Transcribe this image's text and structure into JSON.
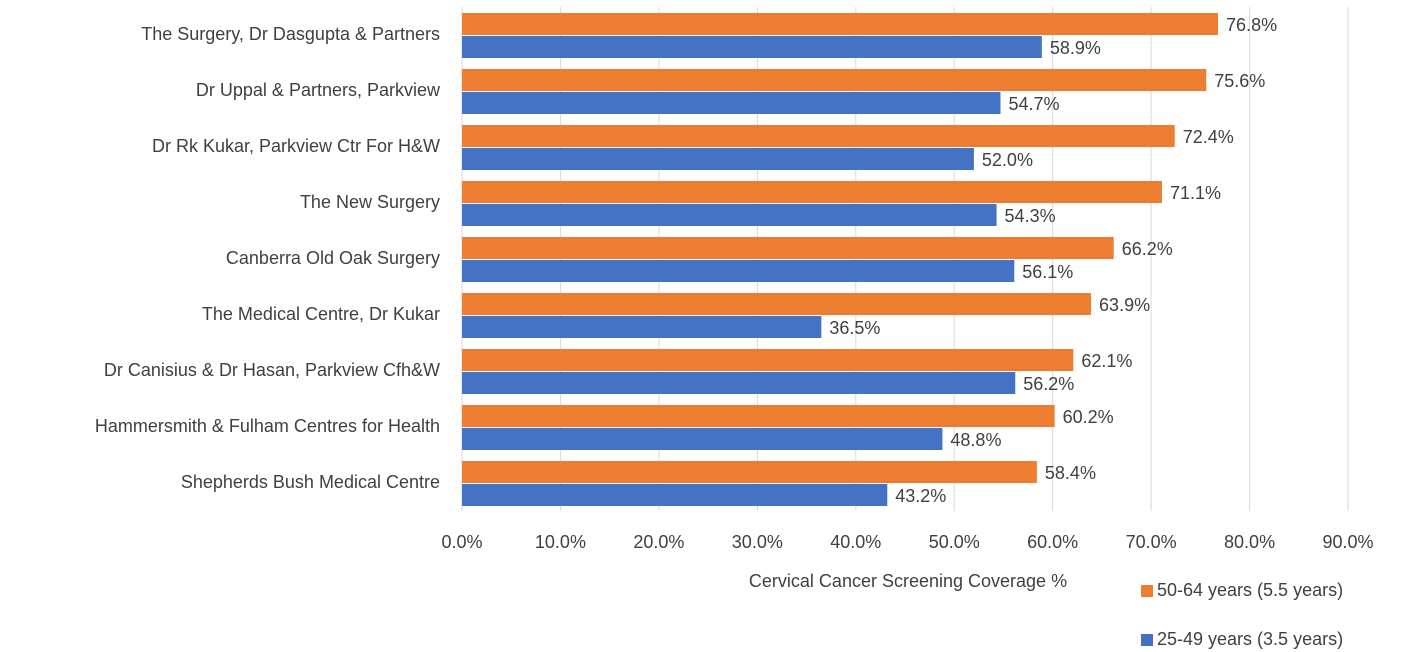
{
  "chart_data": {
    "type": "bar",
    "orientation": "horizontal",
    "x_label": "Cervical Cancer Screening Coverage %",
    "categories": [
      "The Surgery, Dr Dasgupta & Partners",
      "Dr Uppal & Partners, Parkview",
      "Dr Rk Kukar, Parkview Ctr For H&W",
      "The New Surgery",
      "Canberra Old Oak Surgery",
      "The Medical Centre, Dr Kukar",
      "Dr Canisius & Dr Hasan, Parkview Cfh&W",
      "Hammersmith & Fulham Centres for Health",
      "Shepherds Bush Medical Centre"
    ],
    "series": [
      {
        "name": "50-64 years (5.5 years)",
        "color": "#ed7d31",
        "values": [
          76.8,
          75.6,
          72.4,
          71.1,
          66.2,
          63.9,
          62.1,
          60.2,
          58.4
        ],
        "value_labels": [
          "76.8%",
          "75.6%",
          "72.4%",
          "71.1%",
          "66.2%",
          "63.9%",
          "62.1%",
          "60.2%",
          "58.4%"
        ]
      },
      {
        "name": "25-49 years (3.5 years)",
        "color": "#4472c4",
        "values": [
          58.9,
          54.7,
          52.0,
          54.3,
          56.1,
          36.5,
          56.2,
          48.8,
          43.2
        ],
        "value_labels": [
          "58.9%",
          "54.7%",
          "52.0%",
          "54.3%",
          "56.1%",
          "36.5%",
          "56.2%",
          "48.8%",
          "43.2%"
        ]
      }
    ],
    "xlim": [
      0,
      90
    ],
    "xticks": [
      {
        "value": 0,
        "label": "0.0%"
      },
      {
        "value": 10,
        "label": "10.0%"
      },
      {
        "value": 20,
        "label": "20.0%"
      },
      {
        "value": 30,
        "label": "30.0%"
      },
      {
        "value": 40,
        "label": "40.0%"
      },
      {
        "value": 50,
        "label": "50.0%"
      },
      {
        "value": 60,
        "label": "60.0%"
      },
      {
        "value": 70,
        "label": "70.0%"
      },
      {
        "value": 80,
        "label": "80.0%"
      },
      {
        "value": 90,
        "label": "90.0%"
      }
    ],
    "grid": true,
    "legend": "bottom-right"
  }
}
